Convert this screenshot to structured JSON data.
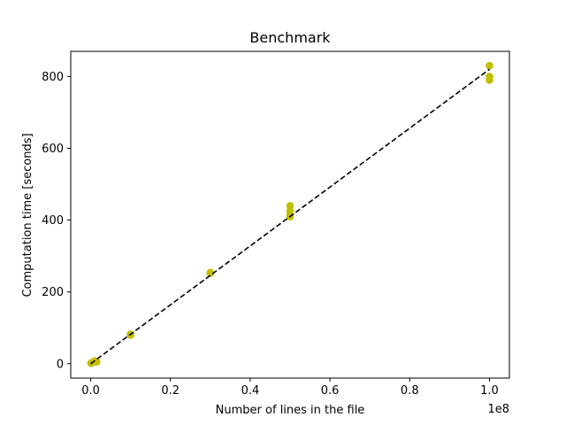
{
  "chart_data": {
    "type": "scatter",
    "title": "Benchmark",
    "xlabel": "Number of lines in the file",
    "ylabel": "Computation time [seconds]",
    "x_offset_label": "1e8",
    "xlim": [
      -0.05,
      1.05
    ],
    "ylim": [
      -40,
      870
    ],
    "x_ticks": [
      0.0,
      0.2,
      0.4,
      0.6,
      0.8,
      1.0
    ],
    "x_tick_labels": [
      "0.0",
      "0.2",
      "0.4",
      "0.6",
      "0.8",
      "1.0"
    ],
    "y_ticks": [
      0,
      200,
      400,
      600,
      800
    ],
    "y_tick_labels": [
      "0",
      "200",
      "400",
      "600",
      "800"
    ],
    "grid": false,
    "colors": {
      "points": "#bfbf00",
      "fit_line": "#000000"
    },
    "series": [
      {
        "kind": "points",
        "x": [
          0.001,
          0.001,
          0.01,
          0.01,
          0.015,
          0.1,
          0.1,
          0.3,
          0.3,
          0.5,
          0.5,
          0.5,
          0.5,
          1.0,
          1.0,
          1.0
        ],
        "y": [
          1,
          2,
          8,
          6,
          5,
          80,
          82,
          252,
          254,
          440,
          425,
          410,
          415,
          830,
          800,
          790
        ]
      },
      {
        "kind": "fit-line",
        "style": "dashed",
        "x": [
          0.0,
          1.0
        ],
        "y": [
          0,
          820
        ]
      }
    ]
  }
}
